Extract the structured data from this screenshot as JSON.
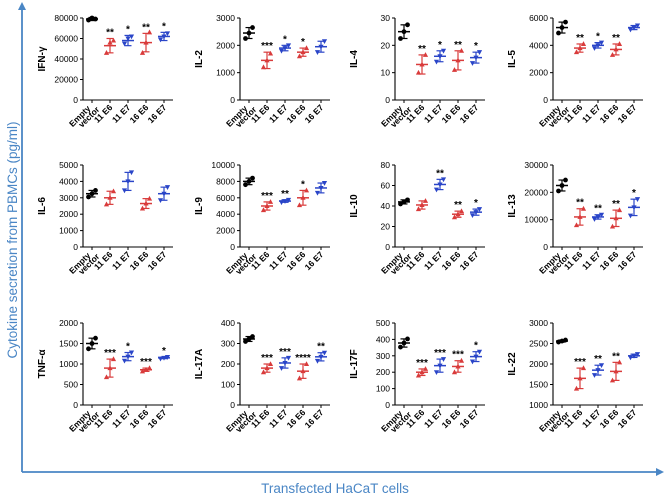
{
  "figure": {
    "y_title": "Cytokine secretion from PBMCs (pg/ml)",
    "x_title": "Transfected HaCaT cells",
    "colors": {
      "title_axis": "#4a86c5",
      "black": "#000000",
      "red": "#d93b3b",
      "blue": "#2a45c8"
    }
  },
  "chart_data": [
    {
      "type": "scatter",
      "ylabel": "IFN-γ",
      "ylim": [
        0,
        80000
      ],
      "yticks": [
        "0",
        "20000",
        "40000",
        "60000",
        "80000"
      ],
      "categories": [
        "Empty vector",
        "11 E6",
        "11 E7",
        "16 E6",
        "16 E7"
      ],
      "means": [
        79000,
        53000,
        58000,
        56000,
        62000
      ],
      "sd": [
        1500,
        7000,
        5000,
        9000,
        4000
      ],
      "points": [
        [
          78000,
          80000,
          79000
        ],
        [
          46000,
          56000,
          58000
        ],
        [
          55000,
          60000,
          62000
        ],
        [
          46000,
          56000,
          66000
        ],
        [
          59000,
          62000,
          65000
        ]
      ],
      "stars": [
        "",
        "**",
        "*",
        "**",
        "*"
      ]
    },
    {
      "type": "scatter",
      "ylabel": "IL-2",
      "ylim": [
        0,
        3000
      ],
      "yticks": [
        "0",
        "1000",
        "2000",
        "3000"
      ],
      "categories": [
        "Empty vector",
        "11 E6",
        "11 E7",
        "16 E6",
        "16 E7"
      ],
      "means": [
        2450,
        1450,
        1900,
        1750,
        1950
      ],
      "sd": [
        200,
        300,
        100,
        150,
        200
      ],
      "points": [
        [
          2250,
          2450,
          2650
        ],
        [
          1200,
          1450,
          1700
        ],
        [
          1800,
          1900,
          2000
        ],
        [
          1600,
          1750,
          1900
        ],
        [
          1750,
          1950,
          2150
        ]
      ],
      "stars": [
        "",
        "***",
        "*",
        "*",
        ""
      ]
    },
    {
      "type": "scatter",
      "ylabel": "IL-4",
      "ylim": [
        0,
        30
      ],
      "yticks": [
        "0",
        "10",
        "20",
        "30"
      ],
      "categories": [
        "Empty vector",
        "11 E6",
        "11 E7",
        "16 E6",
        "16 E7"
      ],
      "means": [
        25,
        13,
        16,
        14.5,
        15.5
      ],
      "sd": [
        2.5,
        3.5,
        2,
        3.5,
        2
      ],
      "points": [
        [
          22.5,
          25,
          27.5
        ],
        [
          10,
          13,
          16.5
        ],
        [
          14,
          16,
          18
        ],
        [
          11,
          14.5,
          18
        ],
        [
          13.5,
          15.5,
          17.5
        ]
      ],
      "stars": [
        "",
        "**",
        "*",
        "**",
        "*"
      ]
    },
    {
      "type": "scatter",
      "ylabel": "IL-5",
      "ylim": [
        0,
        6000
      ],
      "yticks": [
        "0",
        "2000",
        "4000",
        "6000"
      ],
      "categories": [
        "Empty vector",
        "11 E6",
        "11 E7",
        "16 E6",
        "16 E7"
      ],
      "means": [
        5300,
        3800,
        4000,
        3700,
        5300
      ],
      "sd": [
        400,
        300,
        200,
        400,
        150
      ],
      "points": [
        [
          4900,
          5300,
          5700
        ],
        [
          3500,
          3800,
          4100
        ],
        [
          3800,
          4000,
          4200
        ],
        [
          3300,
          3700,
          4100
        ],
        [
          5150,
          5300,
          5450
        ]
      ],
      "stars": [
        "",
        "**",
        "*",
        "**",
        ""
      ]
    },
    {
      "type": "scatter",
      "ylabel": "IL-6",
      "ylim": [
        0,
        5000
      ],
      "yticks": [
        "0",
        "1000",
        "2000",
        "3000",
        "4000",
        "5000"
      ],
      "categories": [
        "Empty vector",
        "11 E6",
        "11 E7",
        "16 E6",
        "16 E7"
      ],
      "means": [
        3250,
        3000,
        4000,
        2650,
        3250
      ],
      "sd": [
        200,
        400,
        550,
        300,
        400
      ],
      "points": [
        [
          3050,
          3250,
          3450
        ],
        [
          2600,
          3000,
          3400
        ],
        [
          3450,
          4000,
          4550
        ],
        [
          2350,
          2650,
          2950
        ],
        [
          2850,
          3250,
          3650
        ]
      ],
      "stars": [
        "",
        "",
        "",
        "",
        ""
      ]
    },
    {
      "type": "scatter",
      "ylabel": "IL-9",
      "ylim": [
        0,
        10000
      ],
      "yticks": [
        "0",
        "2000",
        "4000",
        "6000",
        "8000",
        "10000"
      ],
      "categories": [
        "Empty vector",
        "11 E6",
        "11 E7",
        "16 E6",
        "16 E7"
      ],
      "means": [
        8000,
        5000,
        5600,
        6000,
        7200
      ],
      "sd": [
        400,
        500,
        150,
        900,
        600
      ],
      "points": [
        [
          7600,
          8000,
          8400
        ],
        [
          4500,
          5000,
          5500
        ],
        [
          5450,
          5600,
          5750
        ],
        [
          5100,
          6000,
          6900
        ],
        [
          6600,
          7200,
          7800
        ]
      ],
      "stars": [
        "",
        "***",
        "**",
        "*",
        ""
      ]
    },
    {
      "type": "scatter",
      "ylabel": "IL-10",
      "ylim": [
        0,
        80
      ],
      "yticks": [
        "0",
        "20",
        "40",
        "60",
        "80"
      ],
      "categories": [
        "Empty vector",
        "11 E6",
        "11 E7",
        "16 E6",
        "16 E7"
      ],
      "means": [
        44,
        41,
        61,
        32,
        34
      ],
      "sd": [
        2,
        4,
        5,
        3,
        3
      ],
      "points": [
        [
          42,
          44,
          46
        ],
        [
          37,
          41,
          45
        ],
        [
          56,
          61,
          66
        ],
        [
          29,
          32,
          35
        ],
        [
          31,
          34,
          37
        ]
      ],
      "stars": [
        "",
        "",
        "**",
        "**",
        "*"
      ]
    },
    {
      "type": "scatter",
      "ylabel": "IL-13",
      "ylim": [
        0,
        30000
      ],
      "yticks": [
        "0",
        "10000",
        "20000",
        "30000"
      ],
      "categories": [
        "Empty vector",
        "11 E6",
        "11 E7",
        "16 E6",
        "16 E7"
      ],
      "means": [
        22500,
        11000,
        11000,
        10500,
        14500
      ],
      "sd": [
        2000,
        3000,
        800,
        3000,
        3000
      ],
      "points": [
        [
          20500,
          22500,
          24500
        ],
        [
          8000,
          11000,
          14000
        ],
        [
          10200,
          11000,
          11800
        ],
        [
          7500,
          10500,
          13500
        ],
        [
          11500,
          14500,
          17500
        ]
      ],
      "stars": [
        "",
        "**",
        "**",
        "**",
        "*"
      ]
    },
    {
      "type": "scatter",
      "ylabel": "TNF-α",
      "ylim": [
        0,
        2000
      ],
      "yticks": [
        "0",
        "500",
        "1000",
        "1500",
        "2000"
      ],
      "categories": [
        "Empty vector",
        "11 E6",
        "11 E7",
        "16 E6",
        "16 E7"
      ],
      "means": [
        1500,
        900,
        1180,
        860,
        1150
      ],
      "sd": [
        130,
        220,
        100,
        40,
        20
      ],
      "points": [
        [
          1370,
          1500,
          1630
        ],
        [
          680,
          900,
          1120
        ],
        [
          1080,
          1180,
          1280
        ],
        [
          820,
          860,
          900
        ],
        [
          1130,
          1150,
          1170
        ]
      ],
      "stars": [
        "",
        "***",
        "*",
        "***",
        "*"
      ]
    },
    {
      "type": "scatter",
      "ylabel": "IL-17A",
      "ylim": [
        0,
        400
      ],
      "yticks": [
        "0",
        "100",
        "200",
        "300",
        "400"
      ],
      "categories": [
        "Empty vector",
        "11 E6",
        "11 E7",
        "16 E6",
        "16 E7"
      ],
      "means": [
        322,
        180,
        205,
        165,
        235
      ],
      "sd": [
        12,
        20,
        25,
        35,
        20
      ],
      "points": [
        [
          310,
          322,
          334
        ],
        [
          160,
          180,
          200
        ],
        [
          180,
          205,
          230
        ],
        [
          130,
          165,
          200
        ],
        [
          215,
          235,
          255
        ]
      ],
      "stars": [
        "",
        "***",
        "***",
        "****",
        "**"
      ]
    },
    {
      "type": "scatter",
      "ylabel": "IL-17F",
      "ylim": [
        0,
        500
      ],
      "yticks": [
        "0",
        "100",
        "200",
        "300",
        "400",
        "500"
      ],
      "categories": [
        "Empty vector",
        "11 E6",
        "11 E7",
        "16 E6",
        "16 E7"
      ],
      "means": [
        378,
        200,
        240,
        235,
        295
      ],
      "sd": [
        25,
        20,
        40,
        35,
        30
      ],
      "points": [
        [
          353,
          378,
          403
        ],
        [
          180,
          200,
          220
        ],
        [
          200,
          240,
          280
        ],
        [
          200,
          235,
          270
        ],
        [
          265,
          295,
          325
        ]
      ],
      "stars": [
        "",
        "***",
        "***",
        "***",
        "*"
      ]
    },
    {
      "type": "scatter",
      "ylabel": "IL-22",
      "ylim": [
        1000,
        3000
      ],
      "yticks": [
        "1000",
        "1500",
        "2000",
        "2500",
        "3000"
      ],
      "categories": [
        "Empty vector",
        "11 E6",
        "11 E7",
        "16 E6",
        "16 E7"
      ],
      "means": [
        2560,
        1650,
        1850,
        1820,
        2200
      ],
      "sd": [
        25,
        250,
        120,
        220,
        40
      ],
      "points": [
        [
          2535,
          2560,
          2585
        ],
        [
          1400,
          1650,
          1900
        ],
        [
          1730,
          1850,
          1970
        ],
        [
          1600,
          1820,
          2040
        ],
        [
          2160,
          2200,
          2240
        ]
      ],
      "stars": [
        "",
        "***",
        "**",
        "**",
        ""
      ]
    }
  ]
}
